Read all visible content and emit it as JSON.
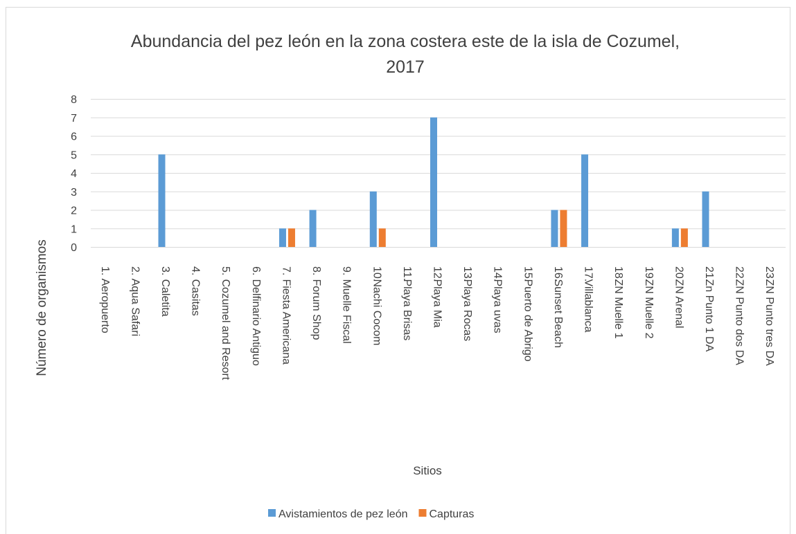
{
  "chart_data": {
    "type": "bar",
    "title": "Abundancia del pez león en la zona costera este de la isla de Cozumel, 2017",
    "x_label": "Sitios",
    "y_label": "Número de organismos",
    "categories": [
      "1. Aeropuerto",
      "2. Aqua Safari",
      "3. Caletita",
      "4. Casitas",
      "5. Cozumel and Resort",
      "6. Delfinario Antiguo",
      "7. Fiesta Americana",
      "8. Forum Shop",
      "9. Muelle Fiscal",
      "10. Nachi Cocom",
      "11. Playa Brisas",
      "12. Playa Mia",
      "13. Playa Rocas",
      "14. Playa uvas",
      "15. Puerto de Abrigo",
      "16. Sunset Beach",
      "17. Villablanca",
      "18. ZN Muelle 1",
      "19. ZN Muelle 2",
      "20. ZN Arenal",
      "21. Zn Punto 1 DA",
      "22. ZN Punto dos DA",
      "23. ZN Punto tres DA"
    ],
    "series": [
      {
        "name": "Avistamientos de pez león",
        "color": "#5b9bd5",
        "values": [
          0,
          0,
          5,
          0,
          0,
          0,
          1,
          2,
          0,
          3,
          0,
          7,
          0,
          0,
          0,
          2,
          5,
          0,
          0,
          1,
          3,
          0,
          0
        ]
      },
      {
        "name": "Capturas",
        "color": "#ed7d31",
        "values": [
          0,
          0,
          0,
          0,
          0,
          0,
          1,
          0,
          0,
          1,
          0,
          0,
          0,
          0,
          0,
          2,
          0,
          0,
          0,
          1,
          0,
          0,
          0
        ]
      }
    ],
    "ylim": [
      0,
      8
    ],
    "yticks": [
      0,
      1,
      2,
      3,
      4,
      5,
      6,
      7,
      8
    ],
    "grid": true,
    "legend": "bottom"
  }
}
